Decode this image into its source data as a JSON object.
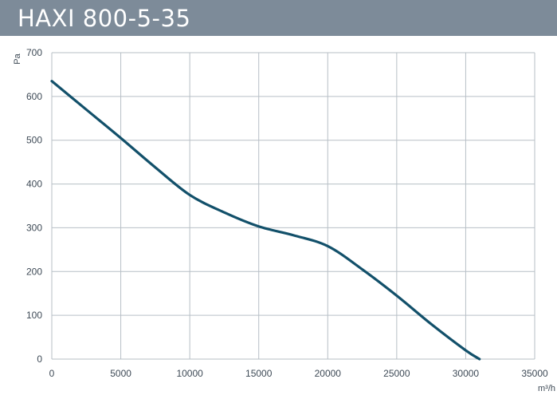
{
  "title": "HAXI 800-5-35",
  "colors": {
    "title_bar": "#7d8b99",
    "curve": "#12506a",
    "grid": "#b7bfc6",
    "axis_text": "#3e4a56"
  },
  "chart_data": {
    "type": "line",
    "title": "HAXI 800-5-35",
    "xlabel": "m³/h",
    "ylabel": "Pa",
    "xlim": [
      0,
      35000
    ],
    "ylim": [
      0,
      700
    ],
    "x_ticks": [
      "0",
      "5000",
      "10000",
      "15000",
      "20000",
      "25000",
      "30000",
      "35000"
    ],
    "y_ticks": [
      "0",
      "100",
      "200",
      "300",
      "400",
      "500",
      "600",
      "700"
    ],
    "grid": true,
    "series": [
      {
        "x": [
          0,
          2500,
          5000,
          7500,
          10000,
          12500,
          15000,
          17500,
          20000,
          22500,
          25000,
          27500,
          30000,
          31000
        ],
        "y": [
          635,
          570,
          505,
          438,
          375,
          335,
          303,
          283,
          258,
          205,
          145,
          80,
          20,
          0
        ]
      }
    ]
  }
}
